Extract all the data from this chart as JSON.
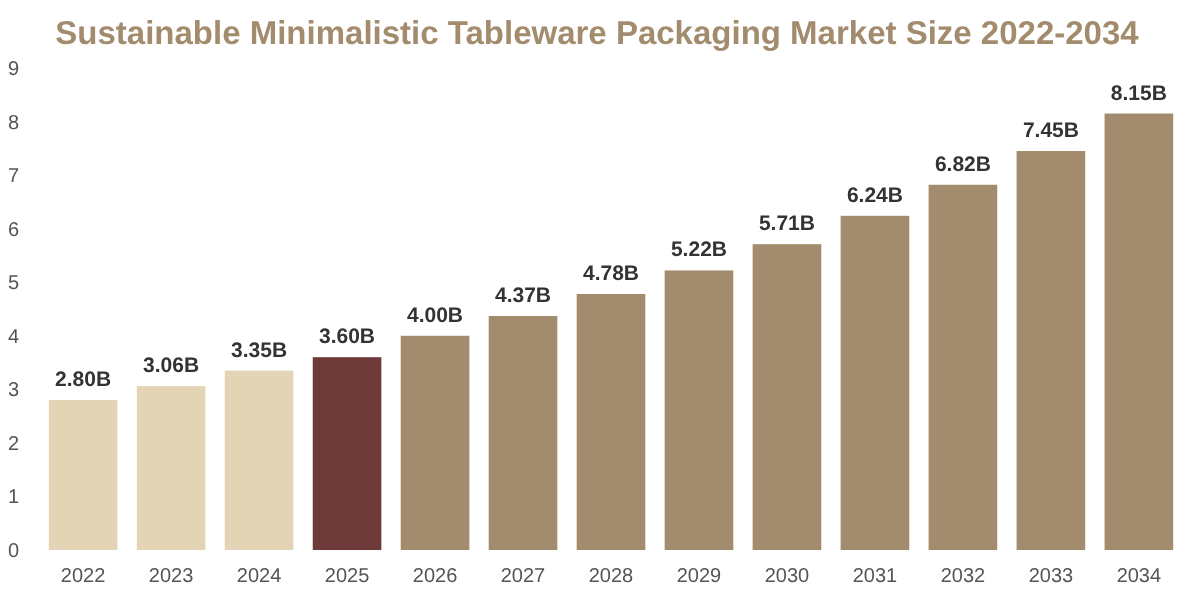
{
  "chart_data": {
    "type": "bar",
    "title": "Sustainable Minimalistic Tableware Packaging Market Size 2022-2034",
    "categories": [
      "2022",
      "2023",
      "2024",
      "2025",
      "2026",
      "2027",
      "2028",
      "2029",
      "2030",
      "2031",
      "2032",
      "2033",
      "2034"
    ],
    "values": [
      2.8,
      3.06,
      3.35,
      3.6,
      4.0,
      4.37,
      4.78,
      5.22,
      5.71,
      6.24,
      6.82,
      7.45,
      8.15
    ],
    "value_labels": [
      "2.80B",
      "3.06B",
      "3.35B",
      "3.60B",
      "4.00B",
      "4.37B",
      "4.78B",
      "5.22B",
      "5.71B",
      "6.24B",
      "6.82B",
      "7.45B",
      "8.15B"
    ],
    "colors": [
      "#e3d4b6",
      "#e3d4b6",
      "#e3d4b6",
      "#6e3a3a",
      "#a38c6d",
      "#a38c6d",
      "#a38c6d",
      "#a38c6d",
      "#a38c6d",
      "#a38c6d",
      "#a38c6d",
      "#a38c6d",
      "#a38c6d"
    ],
    "ylim": [
      0,
      9
    ],
    "yticks": [
      0,
      1,
      2,
      3,
      4,
      5,
      6,
      7,
      8,
      9
    ]
  }
}
